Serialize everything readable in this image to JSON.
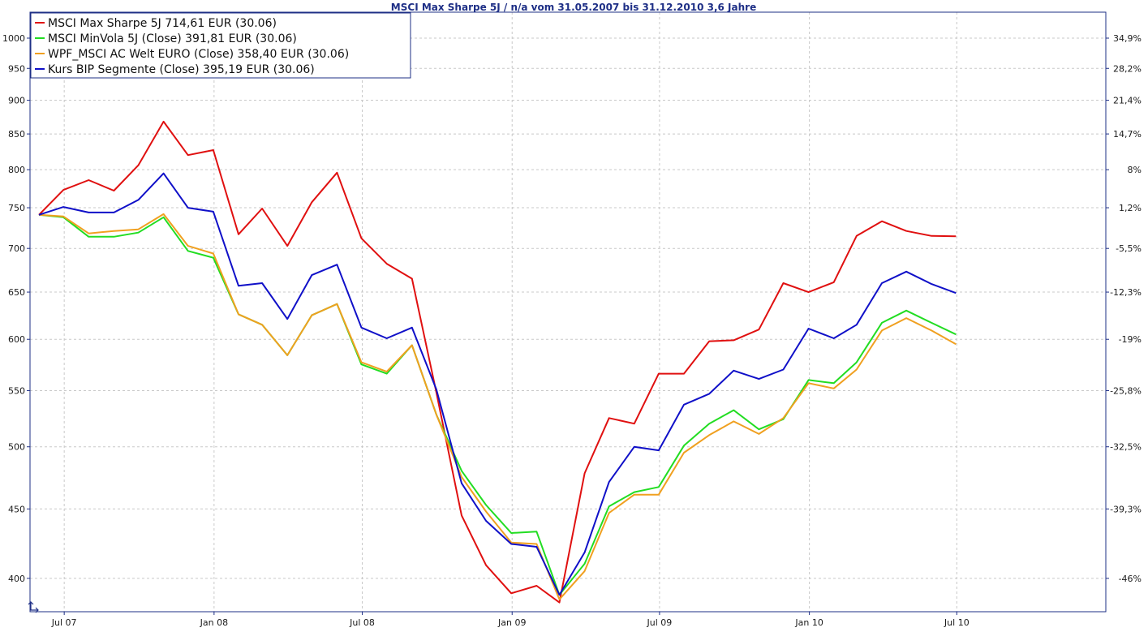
{
  "chart_data": {
    "type": "line",
    "title": "MSCI Max Sharpe 5J / n/a vom 31.05.2007 bis 31.12.2010 3,6 Jahre",
    "xlabel": "",
    "ylabel": "",
    "y_scale": "log",
    "ylim": [
      378,
      1045
    ],
    "x_range": [
      "2007-05-20",
      "2010-12-31"
    ],
    "grid": true,
    "legend_position": "top-left",
    "x_ticks": [
      {
        "date": "2007-07-01",
        "label": "Jul 07"
      },
      {
        "date": "2008-01-01",
        "label": "Jan 08"
      },
      {
        "date": "2008-07-01",
        "label": "Jul 08"
      },
      {
        "date": "2009-01-01",
        "label": "Jan 09"
      },
      {
        "date": "2009-07-01",
        "label": "Jul 09"
      },
      {
        "date": "2010-01-01",
        "label": "Jan 10"
      },
      {
        "date": "2010-07-01",
        "label": "Jul 10"
      }
    ],
    "y_ticks_left": [
      {
        "value": 400,
        "label": "400"
      },
      {
        "value": 450,
        "label": "450"
      },
      {
        "value": 500,
        "label": "500"
      },
      {
        "value": 550,
        "label": "550"
      },
      {
        "value": 600,
        "label": "600"
      },
      {
        "value": 650,
        "label": "650"
      },
      {
        "value": 700,
        "label": "700"
      },
      {
        "value": 750,
        "label": "750"
      },
      {
        "value": 800,
        "label": "800"
      },
      {
        "value": 850,
        "label": "850"
      },
      {
        "value": 900,
        "label": "900"
      },
      {
        "value": 950,
        "label": "950"
      },
      {
        "value": 1000,
        "label": "1000"
      }
    ],
    "y_ticks_right": [
      {
        "value": 400,
        "label": "-46%"
      },
      {
        "value": 450,
        "label": "-39,3%"
      },
      {
        "value": 500,
        "label": "-32,5%"
      },
      {
        "value": 550,
        "label": "-25,8%"
      },
      {
        "value": 600,
        "label": "-19%"
      },
      {
        "value": 650,
        "label": "-12,3%"
      },
      {
        "value": 700,
        "label": "-5,5%"
      },
      {
        "value": 750,
        "label": "1,2%"
      },
      {
        "value": 800,
        "label": "8%"
      },
      {
        "value": 850,
        "label": "14,7%"
      },
      {
        "value": 900,
        "label": "21,4%"
      },
      {
        "value": 950,
        "label": "28,2%"
      },
      {
        "value": 1000,
        "label": "34,9%"
      }
    ],
    "x": [
      "2007-05-31",
      "2007-06-30",
      "2007-07-31",
      "2007-08-31",
      "2007-09-30",
      "2007-10-31",
      "2007-11-30",
      "2007-12-31",
      "2008-01-31",
      "2008-02-29",
      "2008-03-31",
      "2008-04-30",
      "2008-05-31",
      "2008-06-30",
      "2008-07-31",
      "2008-08-31",
      "2008-09-30",
      "2008-10-31",
      "2008-11-30",
      "2008-12-31",
      "2009-01-31",
      "2009-02-28",
      "2009-03-31",
      "2009-04-30",
      "2009-05-31",
      "2009-06-30",
      "2009-07-31",
      "2009-08-31",
      "2009-09-30",
      "2009-10-31",
      "2009-11-30",
      "2009-12-31",
      "2010-01-31",
      "2010-02-28",
      "2010-03-31",
      "2010-04-30",
      "2010-05-31",
      "2010-06-30"
    ],
    "series": [
      {
        "name": "MSCI Max Sharpe 5J 714,61 EUR (30.06)",
        "color": "#e01010",
        "values": [
          741,
          773,
          786,
          772,
          806,
          868,
          820,
          827,
          717,
          749,
          703,
          757,
          796,
          712,
          682,
          665,
          548,
          445,
          409,
          390,
          395,
          384,
          478,
          525,
          520,
          566,
          566,
          598,
          599,
          610,
          660,
          650,
          661,
          715,
          733,
          721,
          715,
          714.61
        ]
      },
      {
        "name": "MSCI MinVola 5J (Close) 391,81 EUR (30.06)",
        "color": "#22dd22",
        "values": [
          741,
          738,
          714,
          714,
          719,
          738,
          697,
          689,
          626,
          615,
          584,
          625,
          637,
          575,
          566,
          594,
          528,
          480,
          453,
          432,
          433,
          389,
          410,
          452,
          463,
          467,
          501,
          520,
          532,
          515,
          524,
          560,
          557,
          577,
          617,
          630,
          617,
          605
        ]
      },
      {
        "name": "WPF_MSCI AC Welt EURO (Close) 358,40 EUR (30.06)",
        "color": "#f0a020",
        "values": [
          741,
          739,
          718,
          721,
          723,
          742,
          703,
          694,
          626,
          615,
          584,
          625,
          637,
          577,
          568,
          594,
          528,
          475,
          448,
          425,
          424,
          386,
          405,
          447,
          461,
          461,
          495,
          510,
          522,
          511,
          525,
          557,
          552,
          570,
          609,
          622,
          609,
          595
        ]
      },
      {
        "name": "Kurs BIP Segmente (Close) 395,19 EUR (30.06)",
        "color": "#1010c8",
        "values": [
          741,
          751,
          744,
          744,
          760,
          795,
          750,
          745,
          657,
          660,
          621,
          669,
          681,
          612,
          601,
          612,
          551,
          470,
          441,
          424,
          422,
          389,
          418,
          471,
          500,
          497,
          537,
          547,
          569,
          561,
          570,
          611,
          601,
          615,
          660,
          673,
          659,
          649
        ]
      }
    ],
    "legend": [
      "MSCI Max Sharpe 5J 714,61 EUR (30.06)",
      "MSCI MinVola 5J (Close) 391,81 EUR (30.06)",
      "WPF_MSCI AC Welt EURO (Close) 358,40 EUR (30.06)",
      "Kurs BIP Segmente (Close) 395,19 EUR (30.06)"
    ]
  }
}
